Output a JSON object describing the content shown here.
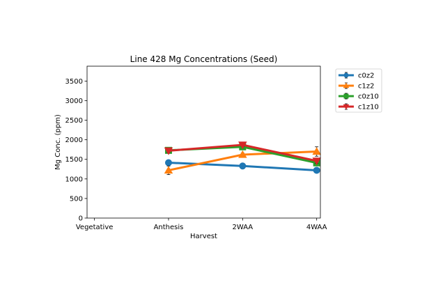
{
  "chart_data": {
    "type": "line",
    "title": "Line 428 Mg Concentrations (Seed)",
    "xlabel": "Harvest",
    "ylabel": "Mg Conc. (ppm)",
    "categories": [
      "Vegetative",
      "Anthesis",
      "2WAA",
      "4WAA"
    ],
    "yticks": [
      0,
      500,
      1000,
      1500,
      2000,
      2500,
      3000,
      3500
    ],
    "ylim": [
      0,
      3880
    ],
    "xlim": [
      0,
      3.15
    ],
    "legend_position": "outside-top-right",
    "grid": false,
    "series": [
      {
        "name": "c0z2",
        "color": "#1f77b4",
        "marker": "circle",
        "values": [
          null,
          1415,
          1330,
          1220
        ],
        "errors": [
          null,
          30,
          25,
          35
        ]
      },
      {
        "name": "c1z2",
        "color": "#ff7f0e",
        "marker": "triangle-up",
        "values": [
          null,
          1220,
          1620,
          1700
        ],
        "errors": [
          null,
          110,
          40,
          120
        ]
      },
      {
        "name": "c0z10",
        "color": "#2ca02c",
        "marker": "square",
        "values": [
          null,
          1730,
          1820,
          1410
        ],
        "errors": [
          null,
          40,
          40,
          50
        ]
      },
      {
        "name": "c1z10",
        "color": "#d62728",
        "marker": "triangle-down",
        "values": [
          null,
          1720,
          1870,
          1460
        ],
        "errors": [
          null,
          50,
          40,
          60
        ]
      }
    ]
  }
}
